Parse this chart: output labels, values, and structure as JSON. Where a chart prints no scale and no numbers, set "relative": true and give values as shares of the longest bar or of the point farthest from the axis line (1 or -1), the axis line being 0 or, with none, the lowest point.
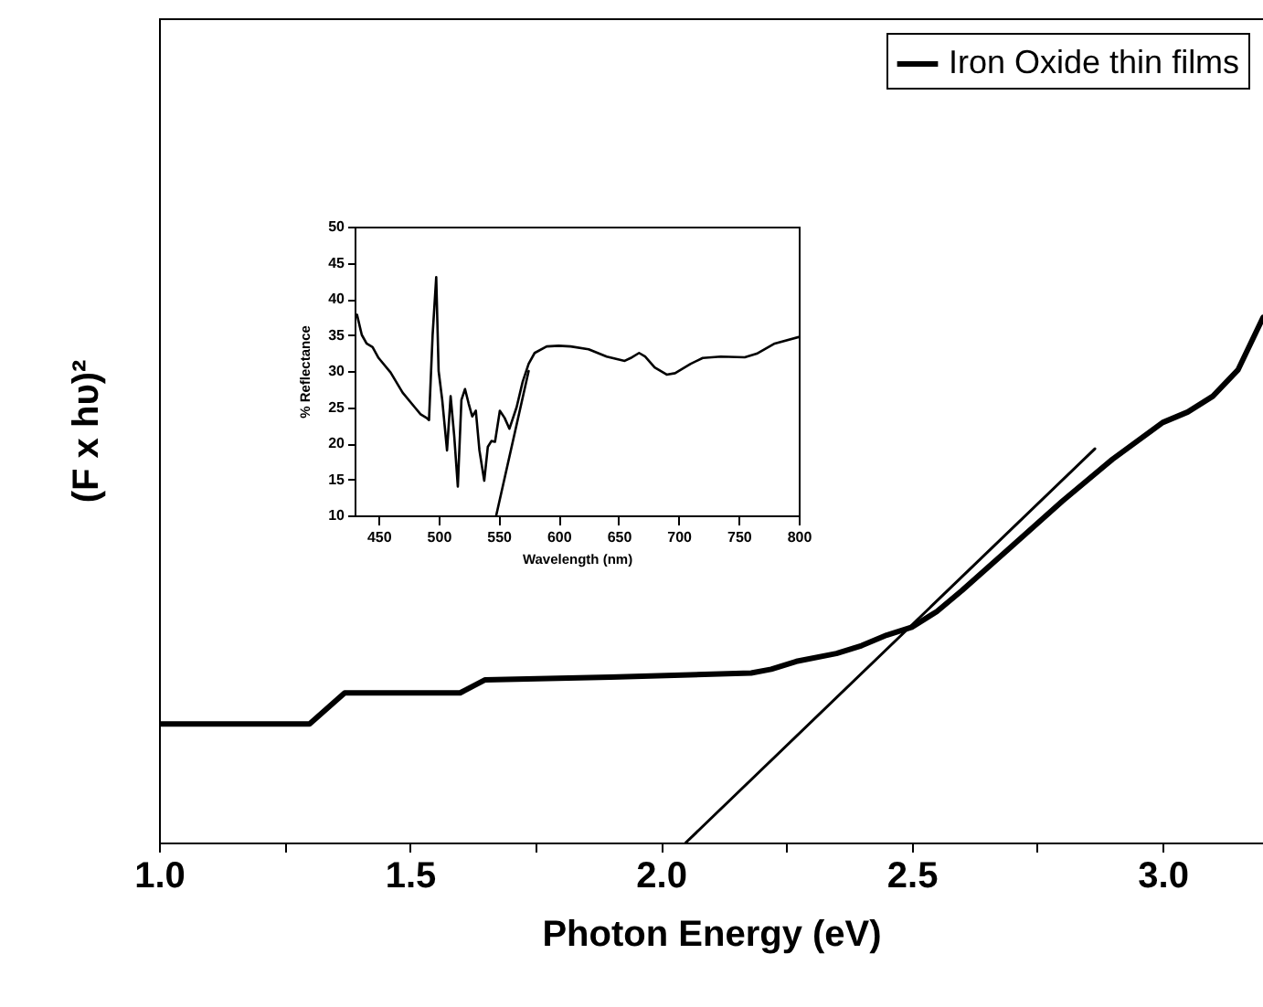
{
  "chart_data": [
    {
      "type": "line",
      "xlabel": "Photon Energy (eV)",
      "ylabel": "(F x hυ)²",
      "relative": true,
      "xlim": [
        1.0,
        3.2
      ],
      "xticks": [
        {
          "value": 1.0,
          "label": "1.0"
        },
        {
          "value": 1.25,
          "label": null
        },
        1.5,
        {
          "value": 1.75,
          "label": null
        },
        {
          "value": 2.0,
          "label": "2.0"
        },
        {
          "value": 2.25,
          "label": null
        },
        2.5,
        {
          "value": 2.75,
          "label": null
        },
        {
          "value": 3.0,
          "label": "3.0"
        }
      ],
      "grid": false,
      "legend": "top right",
      "series": [
        {
          "name": "Iron Oxide thin films",
          "color": "#000000",
          "x": [
            1.0,
            1.3,
            1.37,
            1.6,
            1.63,
            1.65,
            1.9,
            2.18,
            2.22,
            2.27,
            2.35,
            2.4,
            2.45,
            2.5,
            2.55,
            2.6,
            2.7,
            2.8,
            2.9,
            3.0,
            3.05,
            3.1,
            3.15,
            3.2
          ],
          "values": [
            0.226,
            0.226,
            0.285,
            0.285,
            0.3,
            0.31,
            0.315,
            0.323,
            0.33,
            0.345,
            0.36,
            0.375,
            0.395,
            0.41,
            0.44,
            0.48,
            0.565,
            0.65,
            0.73,
            0.8,
            0.82,
            0.85,
            0.9,
            1
          ]
        },
        {
          "type": "line",
          "color": "#000000",
          "x": [
            2.05,
            2.865
          ],
          "values": [
            0,
            0.75
          ]
        }
      ]
    },
    {
      "type": "line",
      "xlabel": "Wavelength (nm)",
      "ylabel": "% Reflectance",
      "xlim": [
        430,
        800
      ],
      "xticks": [
        450,
        500,
        550,
        600,
        650,
        700,
        750,
        800
      ],
      "ylim": [
        10,
        50
      ],
      "yticks": [
        10,
        15,
        20,
        25,
        30,
        35,
        40,
        45,
        50
      ],
      "grid": false,
      "series": [
        {
          "color": "#000000",
          "x": [
            430,
            432,
            436,
            440,
            445,
            450,
            460,
            470,
            480,
            485,
            490,
            492,
            495,
            498,
            500,
            503,
            507,
            510,
            513,
            516,
            519,
            522,
            525,
            528,
            531,
            534,
            538,
            541,
            544,
            547,
            551,
            555,
            559,
            565,
            570,
            575,
            580,
            590,
            600,
            610,
            625,
            640,
            655,
            660,
            667,
            672,
            680,
            690,
            697,
            710,
            720,
            735,
            755,
            765,
            780,
            800
          ],
          "values": [
            37.5,
            37.8,
            35,
            33.8,
            33.3,
            31.8,
            29.8,
            27,
            25,
            24,
            23.5,
            23.2,
            35,
            43,
            30,
            26,
            19,
            26.5,
            21,
            14,
            26,
            27.5,
            25.5,
            23.7,
            24.5,
            19,
            14.8,
            19.5,
            20.3,
            20.2,
            24.5,
            23.5,
            22,
            25,
            28.5,
            31,
            32.5,
            33.4,
            33.5,
            33.4,
            33,
            32,
            31.4,
            31.8,
            32.5,
            32,
            30.5,
            29.5,
            29.7,
            31,
            31.8,
            32,
            31.9,
            32.4,
            33.8,
            34.7
          ]
        },
        {
          "type": "line",
          "color": "#000000",
          "x": [
            548,
            575
          ],
          "values": [
            10,
            30
          ]
        }
      ]
    }
  ]
}
